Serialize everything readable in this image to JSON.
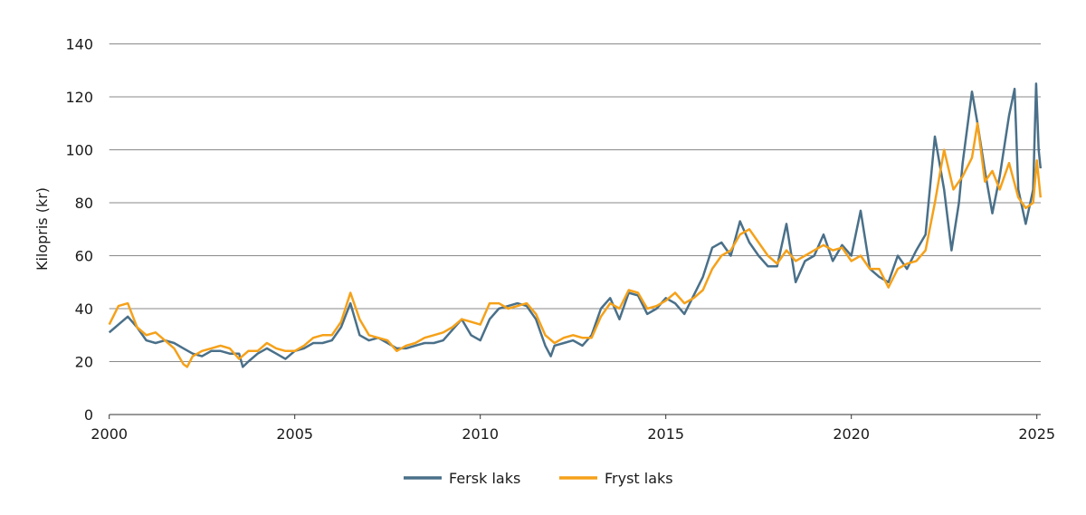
{
  "chart_data": {
    "type": "line",
    "title": "",
    "xlabel": "",
    "ylabel": "Kilopris (kr)",
    "xlim": [
      2000,
      2025.1
    ],
    "ylim": [
      0,
      140
    ],
    "x_ticks": [
      "2000",
      "2005",
      "2010",
      "2015",
      "2020",
      "2025"
    ],
    "y_ticks": [
      "0",
      "20",
      "40",
      "60",
      "80",
      "100",
      "120",
      "140"
    ],
    "grid": "horizontal",
    "legend_position": "bottom",
    "series": [
      {
        "name": "Fersk laks",
        "color": "#4a7089",
        "points": [
          [
            2000.0,
            31
          ],
          [
            2000.25,
            34
          ],
          [
            2000.5,
            37
          ],
          [
            2000.75,
            33
          ],
          [
            2001.0,
            28
          ],
          [
            2001.25,
            27
          ],
          [
            2001.5,
            28
          ],
          [
            2001.75,
            27
          ],
          [
            2002.0,
            25
          ],
          [
            2002.25,
            23
          ],
          [
            2002.5,
            22
          ],
          [
            2002.75,
            24
          ],
          [
            2003.0,
            24
          ],
          [
            2003.25,
            23
          ],
          [
            2003.5,
            23
          ],
          [
            2003.6,
            18
          ],
          [
            2003.75,
            20
          ],
          [
            2004.0,
            23
          ],
          [
            2004.25,
            25
          ],
          [
            2004.5,
            23
          ],
          [
            2004.75,
            21
          ],
          [
            2005.0,
            24
          ],
          [
            2005.25,
            25
          ],
          [
            2005.5,
            27
          ],
          [
            2005.75,
            27
          ],
          [
            2006.0,
            28
          ],
          [
            2006.25,
            33
          ],
          [
            2006.5,
            42
          ],
          [
            2006.75,
            30
          ],
          [
            2007.0,
            28
          ],
          [
            2007.25,
            29
          ],
          [
            2007.5,
            27
          ],
          [
            2007.75,
            25
          ],
          [
            2008.0,
            25
          ],
          [
            2008.25,
            26
          ],
          [
            2008.5,
            27
          ],
          [
            2008.75,
            27
          ],
          [
            2009.0,
            28
          ],
          [
            2009.25,
            32
          ],
          [
            2009.5,
            36
          ],
          [
            2009.75,
            30
          ],
          [
            2010.0,
            28
          ],
          [
            2010.25,
            36
          ],
          [
            2010.5,
            40
          ],
          [
            2010.75,
            41
          ],
          [
            2011.0,
            42
          ],
          [
            2011.25,
            41
          ],
          [
            2011.5,
            36
          ],
          [
            2011.75,
            26
          ],
          [
            2011.9,
            22
          ],
          [
            2012.0,
            26
          ],
          [
            2012.25,
            27
          ],
          [
            2012.5,
            28
          ],
          [
            2012.75,
            26
          ],
          [
            2013.0,
            30
          ],
          [
            2013.25,
            40
          ],
          [
            2013.5,
            44
          ],
          [
            2013.75,
            36
          ],
          [
            2014.0,
            46
          ],
          [
            2014.25,
            45
          ],
          [
            2014.5,
            38
          ],
          [
            2014.75,
            40
          ],
          [
            2015.0,
            44
          ],
          [
            2015.25,
            42
          ],
          [
            2015.5,
            38
          ],
          [
            2015.75,
            45
          ],
          [
            2016.0,
            52
          ],
          [
            2016.25,
            63
          ],
          [
            2016.5,
            65
          ],
          [
            2016.75,
            60
          ],
          [
            2017.0,
            73
          ],
          [
            2017.25,
            65
          ],
          [
            2017.5,
            60
          ],
          [
            2017.75,
            56
          ],
          [
            2018.0,
            56
          ],
          [
            2018.25,
            72
          ],
          [
            2018.5,
            50
          ],
          [
            2018.75,
            58
          ],
          [
            2019.0,
            60
          ],
          [
            2019.25,
            68
          ],
          [
            2019.5,
            58
          ],
          [
            2019.75,
            64
          ],
          [
            2020.0,
            60
          ],
          [
            2020.25,
            77
          ],
          [
            2020.5,
            55
          ],
          [
            2020.75,
            52
          ],
          [
            2021.0,
            50
          ],
          [
            2021.25,
            60
          ],
          [
            2021.5,
            55
          ],
          [
            2021.75,
            62
          ],
          [
            2022.0,
            68
          ],
          [
            2022.25,
            105
          ],
          [
            2022.5,
            85
          ],
          [
            2022.7,
            62
          ],
          [
            2022.9,
            80
          ],
          [
            2023.0,
            95
          ],
          [
            2023.25,
            122
          ],
          [
            2023.4,
            110
          ],
          [
            2023.6,
            92
          ],
          [
            2023.8,
            76
          ],
          [
            2024.0,
            90
          ],
          [
            2024.25,
            113
          ],
          [
            2024.4,
            123
          ],
          [
            2024.5,
            85
          ],
          [
            2024.7,
            72
          ],
          [
            2024.9,
            85
          ],
          [
            2024.98,
            125
          ],
          [
            2025.05,
            100
          ],
          [
            2025.1,
            93
          ]
        ]
      },
      {
        "name": "Fryst laks",
        "color": "#f5a11a",
        "points": [
          [
            2000.0,
            34
          ],
          [
            2000.25,
            41
          ],
          [
            2000.5,
            42
          ],
          [
            2000.75,
            33
          ],
          [
            2001.0,
            30
          ],
          [
            2001.25,
            31
          ],
          [
            2001.5,
            28
          ],
          [
            2001.75,
            25
          ],
          [
            2002.0,
            19
          ],
          [
            2002.1,
            18
          ],
          [
            2002.25,
            22
          ],
          [
            2002.5,
            24
          ],
          [
            2002.75,
            25
          ],
          [
            2003.0,
            26
          ],
          [
            2003.25,
            25
          ],
          [
            2003.5,
            21
          ],
          [
            2003.75,
            24
          ],
          [
            2004.0,
            24
          ],
          [
            2004.25,
            27
          ],
          [
            2004.5,
            25
          ],
          [
            2004.75,
            24
          ],
          [
            2005.0,
            24
          ],
          [
            2005.25,
            26
          ],
          [
            2005.5,
            29
          ],
          [
            2005.75,
            30
          ],
          [
            2006.0,
            30
          ],
          [
            2006.25,
            35
          ],
          [
            2006.5,
            46
          ],
          [
            2006.75,
            36
          ],
          [
            2007.0,
            30
          ],
          [
            2007.25,
            29
          ],
          [
            2007.5,
            28
          ],
          [
            2007.75,
            24
          ],
          [
            2008.0,
            26
          ],
          [
            2008.25,
            27
          ],
          [
            2008.5,
            29
          ],
          [
            2008.75,
            30
          ],
          [
            2009.0,
            31
          ],
          [
            2009.25,
            33
          ],
          [
            2009.5,
            36
          ],
          [
            2009.75,
            35
          ],
          [
            2010.0,
            34
          ],
          [
            2010.25,
            42
          ],
          [
            2010.5,
            42
          ],
          [
            2010.75,
            40
          ],
          [
            2011.0,
            41
          ],
          [
            2011.25,
            42
          ],
          [
            2011.5,
            38
          ],
          [
            2011.75,
            30
          ],
          [
            2012.0,
            27
          ],
          [
            2012.25,
            29
          ],
          [
            2012.5,
            30
          ],
          [
            2012.75,
            29
          ],
          [
            2013.0,
            29
          ],
          [
            2013.25,
            37
          ],
          [
            2013.5,
            42
          ],
          [
            2013.75,
            40
          ],
          [
            2014.0,
            47
          ],
          [
            2014.25,
            46
          ],
          [
            2014.5,
            40
          ],
          [
            2014.75,
            41
          ],
          [
            2015.0,
            43
          ],
          [
            2015.25,
            46
          ],
          [
            2015.5,
            42
          ],
          [
            2015.75,
            44
          ],
          [
            2016.0,
            47
          ],
          [
            2016.25,
            55
          ],
          [
            2016.5,
            60
          ],
          [
            2016.75,
            62
          ],
          [
            2017.0,
            68
          ],
          [
            2017.25,
            70
          ],
          [
            2017.5,
            65
          ],
          [
            2017.75,
            60
          ],
          [
            2018.0,
            57
          ],
          [
            2018.25,
            62
          ],
          [
            2018.5,
            58
          ],
          [
            2018.75,
            60
          ],
          [
            2019.0,
            62
          ],
          [
            2019.25,
            64
          ],
          [
            2019.5,
            62
          ],
          [
            2019.75,
            63
          ],
          [
            2020.0,
            58
          ],
          [
            2020.25,
            60
          ],
          [
            2020.5,
            55
          ],
          [
            2020.75,
            55
          ],
          [
            2021.0,
            48
          ],
          [
            2021.25,
            55
          ],
          [
            2021.5,
            57
          ],
          [
            2021.75,
            58
          ],
          [
            2022.0,
            62
          ],
          [
            2022.25,
            80
          ],
          [
            2022.5,
            100
          ],
          [
            2022.75,
            85
          ],
          [
            2023.0,
            90
          ],
          [
            2023.25,
            97
          ],
          [
            2023.4,
            110
          ],
          [
            2023.6,
            88
          ],
          [
            2023.8,
            92
          ],
          [
            2024.0,
            85
          ],
          [
            2024.25,
            95
          ],
          [
            2024.5,
            82
          ],
          [
            2024.7,
            78
          ],
          [
            2024.9,
            80
          ],
          [
            2025.0,
            96
          ],
          [
            2025.1,
            82
          ]
        ]
      }
    ]
  }
}
